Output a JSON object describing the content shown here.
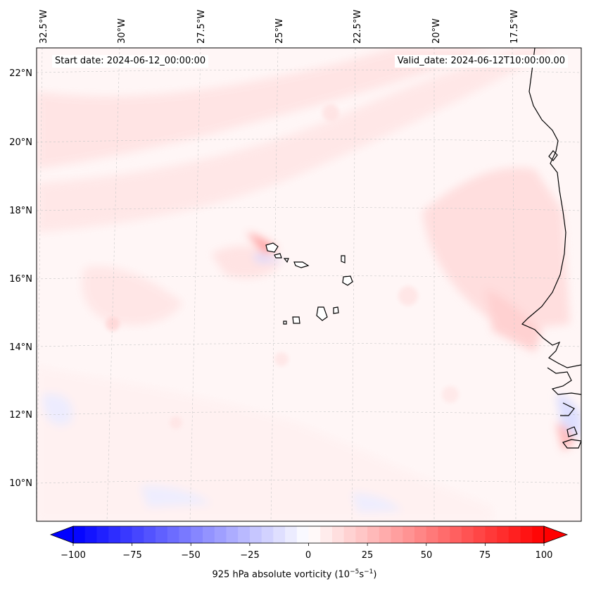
{
  "header": {
    "start_date": "Start date: 2024-06-12_00:00:00",
    "valid_date": "Valid_date: 2024-06-12T10:00:00.00"
  },
  "map": {
    "lon_labels": [
      "32.5°W",
      "30°W",
      "27.5°W",
      "25°W",
      "22.5°W",
      "20°W",
      "17.5°W"
    ],
    "lat_labels": [
      "22°N",
      "20°N",
      "18°N",
      "16°N",
      "14°N",
      "12°N",
      "10°N"
    ],
    "colormap": "bwr",
    "coastline_color": "#000000"
  },
  "colorbar": {
    "ticks": [
      "−100",
      "−75",
      "−50",
      "−25",
      "0",
      "25",
      "50",
      "75",
      "100"
    ],
    "vmin": -100,
    "vmax": 100,
    "label": "925 hPa absolute vorticity (10",
    "label_sup1": "−5",
    "label_mid": "s",
    "label_sup2": "−1",
    "label_end": ")",
    "extend": "both"
  }
}
